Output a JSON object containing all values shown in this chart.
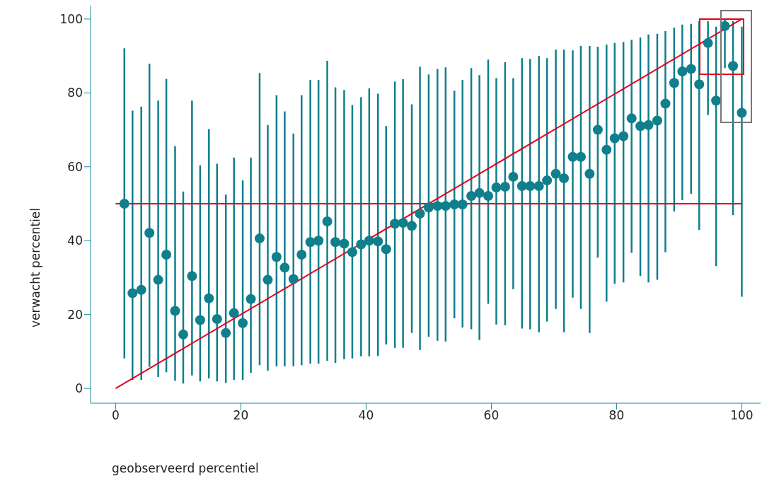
{
  "chart_data": {
    "type": "scatter",
    "xlabel": "geobserveerd percentiel",
    "ylabel": "verwacht percentiel",
    "xlim": [
      -4,
      103
    ],
    "ylim": [
      -4,
      104
    ],
    "xticks": [
      0,
      20,
      40,
      60,
      80,
      100
    ],
    "yticks": [
      0,
      20,
      40,
      60,
      80,
      100
    ],
    "grid": false,
    "marker": "circle",
    "series": [
      {
        "color": "#0f7f8c",
        "x": [
          1.4,
          2.7,
          4.1,
          5.4,
          6.8,
          8.1,
          9.5,
          10.8,
          12.2,
          13.5,
          14.9,
          16.2,
          17.6,
          18.9,
          20.3,
          21.6,
          23.0,
          24.3,
          25.7,
          27.0,
          28.4,
          29.7,
          31.1,
          32.4,
          33.8,
          35.1,
          36.5,
          37.8,
          39.2,
          40.5,
          41.9,
          43.2,
          44.6,
          45.9,
          47.3,
          48.6,
          50.0,
          51.4,
          52.7,
          54.1,
          55.4,
          56.8,
          58.1,
          59.5,
          60.8,
          62.2,
          63.5,
          64.9,
          66.2,
          67.6,
          68.9,
          70.3,
          71.6,
          73.0,
          74.3,
          75.7,
          77.0,
          78.4,
          79.7,
          81.1,
          82.4,
          83.8,
          85.1,
          86.5,
          87.8,
          89.2,
          90.5,
          91.9,
          93.2,
          94.6,
          95.9,
          97.3,
          98.6,
          100.0
        ],
        "values": [
          50,
          25.8,
          26.7,
          42.1,
          29.4,
          36.2,
          21,
          14.6,
          30.4,
          18.5,
          24.4,
          18.8,
          15,
          20.4,
          17.7,
          24.2,
          40.6,
          29.4,
          35.6,
          32.7,
          29.6,
          36.2,
          39.6,
          40,
          45.2,
          39.6,
          39.2,
          36.9,
          39,
          40,
          39.8,
          37.7,
          44.6,
          44.8,
          44,
          47.3,
          49,
          49.4,
          49.4,
          49.8,
          49.8,
          52.1,
          52.9,
          52.1,
          54.4,
          54.6,
          57.3,
          54.8,
          54.8,
          54.8,
          56.3,
          58.1,
          56.9,
          62.7,
          62.7,
          58.1,
          70,
          64.6,
          67.7,
          68.3,
          73.1,
          71,
          71.3,
          72.5,
          77.1,
          82.7,
          85.8,
          86.5,
          82.3,
          93.5,
          77.9,
          98.1,
          87.3,
          74.6
        ],
        "errors": [
          [
            8.1,
            92.1
          ],
          [
            2.3,
            75.2
          ],
          [
            2.3,
            76.3
          ],
          [
            5.8,
            87.9
          ],
          [
            3.1,
            77.9
          ],
          [
            4.4,
            83.8
          ],
          [
            2.1,
            65.6
          ],
          [
            1.3,
            53.3
          ],
          [
            3.5,
            77.9
          ],
          [
            1.9,
            60.4
          ],
          [
            2.7,
            70.2
          ],
          [
            1.9,
            60.8
          ],
          [
            1.5,
            52.5
          ],
          [
            2.3,
            62.5
          ],
          [
            2.3,
            56.3
          ],
          [
            4.2,
            62.5
          ],
          [
            6.3,
            85.4
          ],
          [
            4.8,
            71.3
          ],
          [
            6,
            79.4
          ],
          [
            6,
            75
          ],
          [
            6,
            69
          ],
          [
            6.3,
            79.4
          ],
          [
            6.7,
            83.5
          ],
          [
            6.7,
            83.5
          ],
          [
            7.5,
            88.7
          ],
          [
            6.9,
            81.5
          ],
          [
            7.9,
            80.8
          ],
          [
            8.1,
            76.7
          ],
          [
            8.7,
            78.8
          ],
          [
            8.7,
            81.2
          ],
          [
            8.8,
            79.8
          ],
          [
            11.9,
            71
          ],
          [
            11,
            83.1
          ],
          [
            11,
            83.7
          ],
          [
            15,
            76.9
          ],
          [
            10.4,
            87.1
          ],
          [
            14,
            85
          ],
          [
            12.9,
            86.5
          ],
          [
            12.7,
            86.9
          ],
          [
            19,
            80.6
          ],
          [
            16.5,
            83.5
          ],
          [
            16,
            86.7
          ],
          [
            13.1,
            84.8
          ],
          [
            22.9,
            89
          ],
          [
            17.3,
            84
          ],
          [
            17.1,
            88.3
          ],
          [
            26.9,
            84
          ],
          [
            16.2,
            89.4
          ],
          [
            16,
            89.2
          ],
          [
            15.2,
            90
          ],
          [
            18.1,
            89.4
          ],
          [
            21.5,
            91.7
          ],
          [
            15.2,
            91.7
          ],
          [
            24.6,
            91.5
          ],
          [
            21.5,
            92.7
          ],
          [
            15,
            92.7
          ],
          [
            35.4,
            92.5
          ],
          [
            23.5,
            93.1
          ],
          [
            28.3,
            93.5
          ],
          [
            28.7,
            93.8
          ],
          [
            36.7,
            94.4
          ],
          [
            30.4,
            95
          ],
          [
            28.7,
            95.8
          ],
          [
            29.4,
            96
          ],
          [
            36.9,
            96.7
          ],
          [
            47.9,
            97.7
          ],
          [
            51,
            98.5
          ],
          [
            52.7,
            98.7
          ],
          [
            42.9,
            99.4
          ],
          [
            74,
            99.4
          ],
          [
            33.1,
            97.9
          ],
          [
            86.7,
            100
          ],
          [
            46.9,
            99.4
          ],
          [
            24.8,
            97.9
          ]
        ]
      },
      {
        "type": "line",
        "color": "#e3001b",
        "x": [
          0,
          100
        ],
        "values": [
          0,
          100
        ],
        "marker": "none"
      },
      {
        "type": "line",
        "color": "#e3001b",
        "x": [
          0,
          100
        ],
        "values": [
          50,
          50
        ],
        "marker": "none"
      }
    ]
  }
}
